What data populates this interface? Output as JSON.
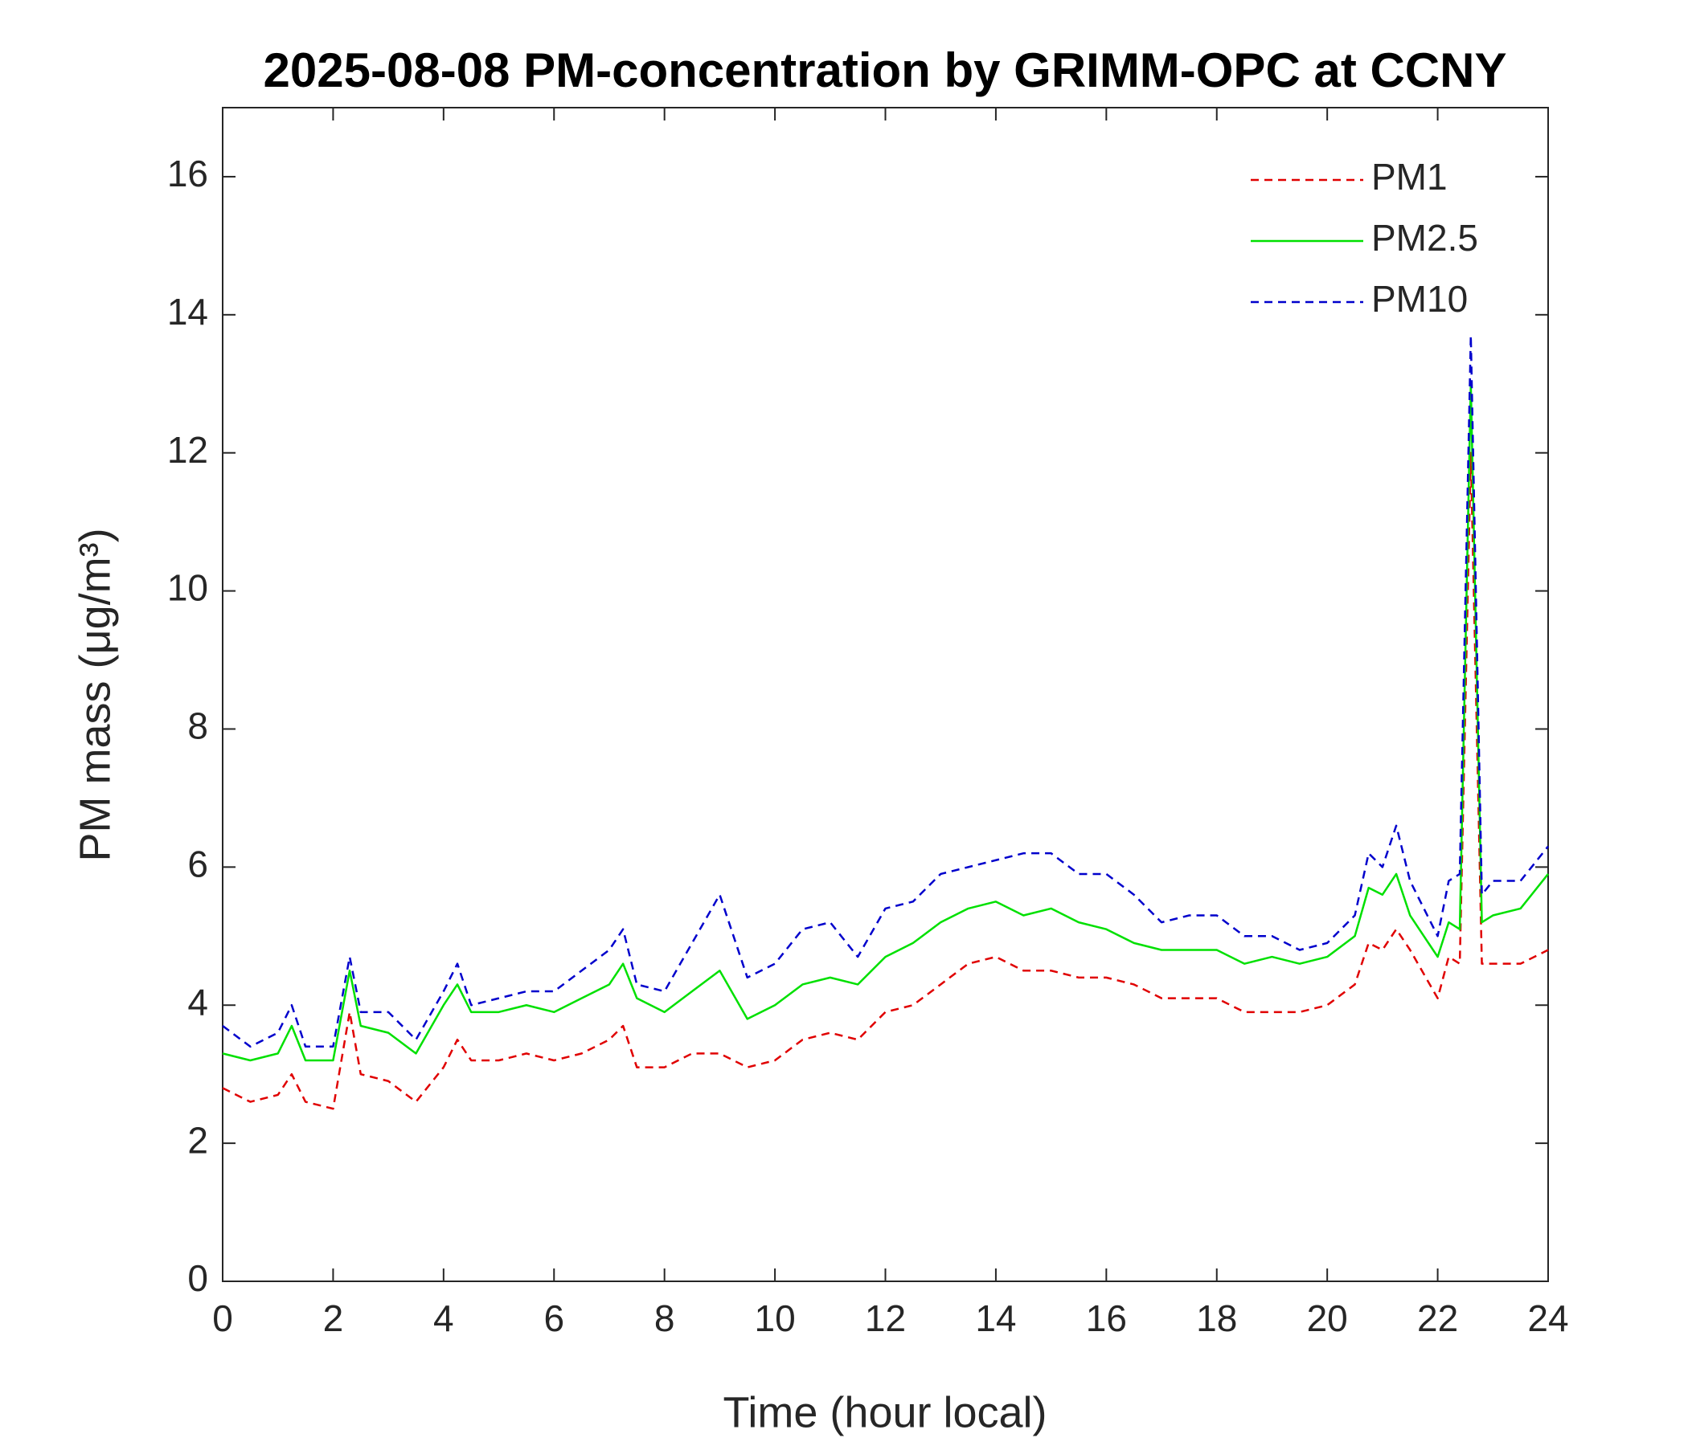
{
  "chart_data": {
    "type": "line",
    "title": "2025-08-08 PM-concentration by GRIMM-OPC at CCNY",
    "xlabel": "Time (hour local)",
    "ylabel": "PM mass (μg/m³)",
    "x": [
      0,
      0.5,
      1,
      1.25,
      1.5,
      2,
      2.3,
      2.5,
      3,
      3.5,
      4,
      4.25,
      4.5,
      5,
      5.5,
      6,
      6.5,
      7,
      7.25,
      7.5,
      8,
      8.5,
      9,
      9.5,
      10,
      10.5,
      11,
      11.5,
      12,
      12.5,
      13,
      13.5,
      14,
      14.5,
      15,
      15.5,
      16,
      16.5,
      17,
      17.5,
      18,
      18.5,
      19,
      19.5,
      20,
      20.5,
      20.75,
      21,
      21.25,
      21.5,
      22,
      22.2,
      22.4,
      22.6,
      22.8,
      23,
      23.5,
      24
    ],
    "series": [
      {
        "name": "PM1",
        "color": "#e00000",
        "dash": true,
        "values": [
          2.8,
          2.6,
          2.7,
          3.0,
          2.6,
          2.5,
          3.9,
          3.0,
          2.9,
          2.6,
          3.1,
          3.5,
          3.2,
          3.2,
          3.3,
          3.2,
          3.3,
          3.5,
          3.7,
          3.1,
          3.1,
          3.3,
          3.3,
          3.1,
          3.2,
          3.5,
          3.6,
          3.5,
          3.9,
          4.0,
          4.3,
          4.6,
          4.7,
          4.5,
          4.5,
          4.4,
          4.4,
          4.3,
          4.1,
          4.1,
          4.1,
          3.9,
          3.9,
          3.9,
          4.0,
          4.3,
          4.9,
          4.8,
          5.1,
          4.8,
          4.1,
          4.7,
          4.6,
          12.0,
          4.6,
          4.6,
          4.6,
          4.8
        ]
      },
      {
        "name": "PM2.5",
        "color": "#00e000",
        "dash": false,
        "values": [
          3.3,
          3.2,
          3.3,
          3.7,
          3.2,
          3.2,
          4.5,
          3.7,
          3.6,
          3.3,
          4.0,
          4.3,
          3.9,
          3.9,
          4.0,
          3.9,
          4.1,
          4.3,
          4.6,
          4.1,
          3.9,
          4.2,
          4.5,
          3.8,
          4.0,
          4.3,
          4.4,
          4.3,
          4.7,
          4.9,
          5.2,
          5.4,
          5.5,
          5.3,
          5.4,
          5.2,
          5.1,
          4.9,
          4.8,
          4.8,
          4.8,
          4.6,
          4.7,
          4.6,
          4.7,
          5.0,
          5.7,
          5.6,
          5.9,
          5.3,
          4.7,
          5.2,
          5.1,
          13.0,
          5.2,
          5.3,
          5.4,
          5.9
        ]
      },
      {
        "name": "PM10",
        "color": "#0000cc",
        "dash": true,
        "values": [
          3.7,
          3.4,
          3.6,
          4.0,
          3.4,
          3.4,
          4.7,
          3.9,
          3.9,
          3.5,
          4.2,
          4.6,
          4.0,
          4.1,
          4.2,
          4.2,
          4.5,
          4.8,
          5.1,
          4.3,
          4.2,
          4.9,
          5.6,
          4.4,
          4.6,
          5.1,
          5.2,
          4.7,
          5.4,
          5.5,
          5.9,
          6.0,
          6.1,
          6.2,
          6.2,
          5.9,
          5.9,
          5.6,
          5.2,
          5.3,
          5.3,
          5.0,
          5.0,
          4.8,
          4.9,
          5.3,
          6.2,
          6.0,
          6.6,
          5.8,
          5.0,
          5.8,
          5.9,
          13.7,
          5.6,
          5.8,
          5.8,
          6.3
        ]
      }
    ],
    "xlim": [
      0,
      24
    ],
    "xticks": [
      0,
      2,
      4,
      6,
      8,
      10,
      12,
      14,
      16,
      18,
      20,
      22,
      24
    ],
    "ylim": [
      0,
      17
    ],
    "yticks": [
      0,
      2,
      4,
      6,
      8,
      10,
      12,
      14,
      16
    ],
    "grid": false,
    "legend": "upper right"
  }
}
